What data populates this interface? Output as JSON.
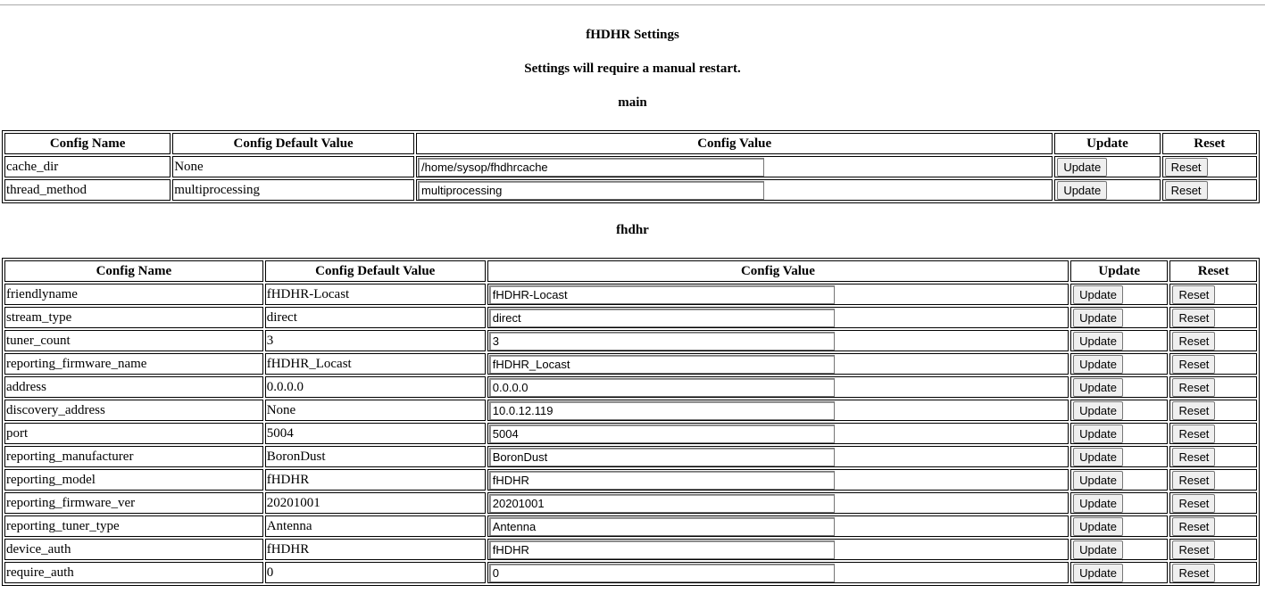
{
  "title": "fHDHR Settings",
  "notice": "Settings will require a manual restart.",
  "headers": {
    "name": "Config Name",
    "default": "Config Default Value",
    "value": "Config Value",
    "update": "Update",
    "reset": "Reset"
  },
  "buttons": {
    "update": "Update",
    "reset": "Reset"
  },
  "sections": [
    {
      "name": "main",
      "rows": [
        {
          "name": "cache_dir",
          "default": "None",
          "value": "/home/sysop/fhdhrcache"
        },
        {
          "name": "thread_method",
          "default": "multiprocessing",
          "value": "multiprocessing"
        }
      ]
    },
    {
      "name": "fhdhr",
      "rows": [
        {
          "name": "friendlyname",
          "default": "fHDHR-Locast",
          "value": "fHDHR-Locast"
        },
        {
          "name": "stream_type",
          "default": "direct",
          "value": "direct"
        },
        {
          "name": "tuner_count",
          "default": "3",
          "value": "3"
        },
        {
          "name": "reporting_firmware_name",
          "default": "fHDHR_Locast",
          "value": "fHDHR_Locast"
        },
        {
          "name": "address",
          "default": "0.0.0.0",
          "value": "0.0.0.0"
        },
        {
          "name": "discovery_address",
          "default": "None",
          "value": "10.0.12.119"
        },
        {
          "name": "port",
          "default": "5004",
          "value": "5004"
        },
        {
          "name": "reporting_manufacturer",
          "default": "BoronDust",
          "value": "BoronDust"
        },
        {
          "name": "reporting_model",
          "default": "fHDHR",
          "value": "fHDHR"
        },
        {
          "name": "reporting_firmware_ver",
          "default": "20201001",
          "value": "20201001"
        },
        {
          "name": "reporting_tuner_type",
          "default": "Antenna",
          "value": "Antenna"
        },
        {
          "name": "device_auth",
          "default": "fHDHR",
          "value": "fHDHR"
        },
        {
          "name": "require_auth",
          "default": "0",
          "value": "0"
        }
      ]
    }
  ]
}
